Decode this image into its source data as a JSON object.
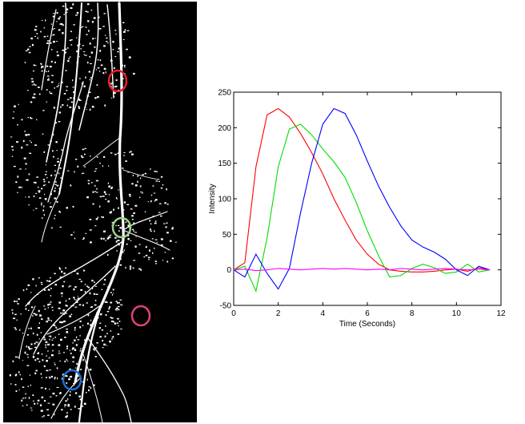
{
  "micrograph": {
    "markers": [
      {
        "name": "red-marker",
        "color": "#e8202a"
      },
      {
        "name": "green-marker",
        "color": "#9ed28a"
      },
      {
        "name": "magenta-marker",
        "color": "#e0407e"
      },
      {
        "name": "blue-marker",
        "color": "#1f6fd1"
      }
    ]
  },
  "chart_data": {
    "type": "line",
    "title": "",
    "xlabel": "Time (Seconds)",
    "ylabel": "Intensity",
    "xlim": [
      0,
      12
    ],
    "ylim": [
      -50,
      250
    ],
    "xticks": [
      0,
      2,
      4,
      6,
      8,
      10,
      12
    ],
    "yticks": [
      -50,
      0,
      50,
      100,
      150,
      200,
      250
    ],
    "xtick_labels": [
      "0",
      "2",
      "4",
      "6",
      "8",
      "10",
      "12"
    ],
    "ytick_labels": [
      "-50",
      "0",
      "50",
      "100",
      "150",
      "200",
      "250"
    ],
    "grid": false,
    "legend": "none",
    "series": [
      {
        "color": "#ff0000",
        "x": [
          0,
          0.5,
          1,
          1.5,
          2,
          2.5,
          3,
          3.5,
          4,
          4.5,
          5,
          5.5,
          6,
          6.5,
          7,
          7.5,
          8,
          8.5,
          9,
          9.5,
          10,
          10.5,
          11,
          11.5
        ],
        "y": [
          0,
          10,
          145,
          218,
          227,
          215,
          192,
          165,
          135,
          100,
          70,
          42,
          22,
          8,
          0,
          -2,
          -3,
          -3,
          -2,
          0,
          1,
          -2,
          3,
          0
        ]
      },
      {
        "color": "#00dd00",
        "x": [
          0,
          0.5,
          1,
          1.5,
          2,
          2.5,
          3,
          3.5,
          4,
          4.5,
          5,
          5.5,
          6,
          6.5,
          7,
          7.5,
          8,
          8.5,
          9,
          9.5,
          10,
          10.5,
          11,
          11.5
        ],
        "y": [
          0,
          5,
          -30,
          45,
          145,
          198,
          205,
          190,
          170,
          152,
          130,
          95,
          55,
          20,
          -10,
          -8,
          2,
          8,
          3,
          -5,
          -3,
          8,
          -3,
          0
        ]
      },
      {
        "color": "#0000ff",
        "x": [
          0,
          0.5,
          1,
          1.5,
          2,
          2.5,
          3,
          3.5,
          4,
          4.5,
          5,
          5.5,
          6,
          6.5,
          7,
          7.5,
          8,
          8.5,
          9,
          9.5,
          10,
          10.5,
          11,
          11.5
        ],
        "y": [
          0,
          -10,
          22,
          -5,
          -27,
          2,
          80,
          150,
          205,
          227,
          220,
          190,
          153,
          118,
          88,
          62,
          42,
          32,
          25,
          15,
          0,
          -8,
          5,
          0
        ]
      },
      {
        "color": "#ff00ff",
        "x": [
          0,
          0.5,
          1,
          1.5,
          2,
          2.5,
          3,
          3.5,
          4,
          4.5,
          5,
          5.5,
          6,
          6.5,
          7,
          7.5,
          8,
          8.5,
          9,
          9.5,
          10,
          10.5,
          11,
          11.5
        ],
        "y": [
          0,
          1,
          -1,
          0,
          2,
          1,
          0,
          1,
          2,
          1,
          2,
          1,
          0,
          1,
          0,
          2,
          1,
          0,
          1,
          2,
          1,
          0,
          1,
          0
        ]
      }
    ]
  }
}
